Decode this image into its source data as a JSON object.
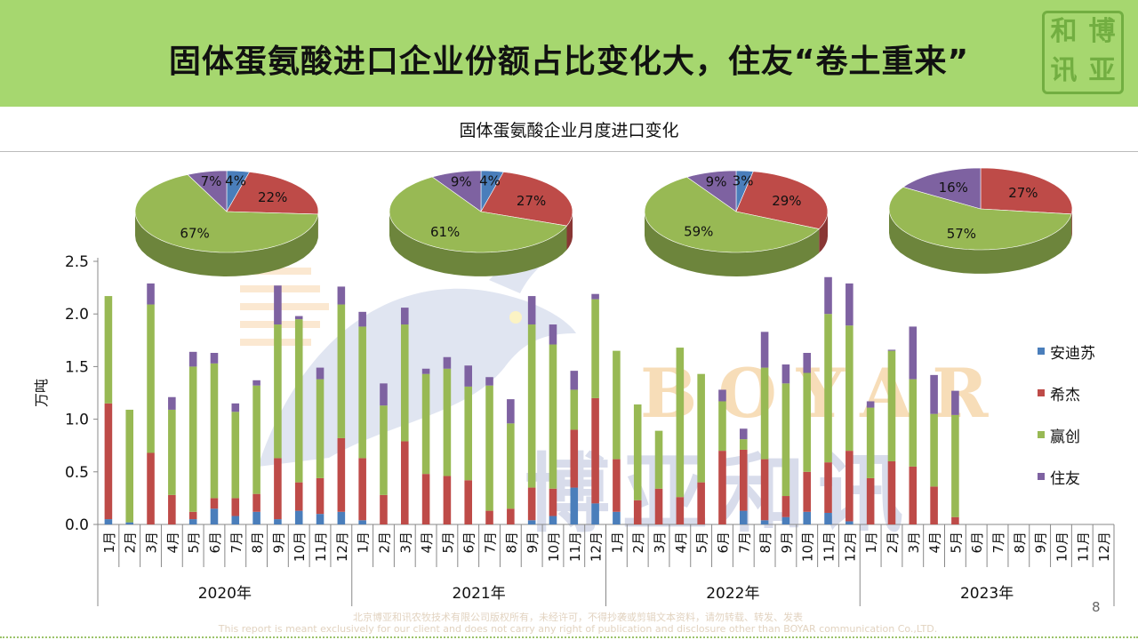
{
  "page": {
    "title": "固体蛋氨酸进口企业份额占比变化大，住友“卷土重来”",
    "seal_chars": [
      "和",
      "博",
      "讯",
      "亚"
    ],
    "page_number": "8",
    "footer_cn": "北京博亚和讯农牧技术有限公司版权所有，未经许可，不得抄袭或剪辑文本资料，请勿转载、转发、发表",
    "footer_en": "This report is meant exclusively for our client and does not carry any right of publication and disclosure other than BOYAR communication Co.,LTD.",
    "watermark_en": "BOYAR",
    "watermark_cn": "博亚和讯"
  },
  "colors": {
    "安迪苏": "#4a7ebb",
    "希杰": "#be4b48",
    "赢创": "#98b954",
    "住友": "#7e62a1"
  },
  "chart_data": {
    "type": "bar",
    "stacked": true,
    "title": "固体蛋氨酸企业月度进口变化",
    "ylabel": "万吨",
    "ylim": [
      0,
      2.5
    ],
    "yticks": [
      "0.0",
      "0.5",
      "1.0",
      "1.5",
      "2.0",
      "2.5"
    ],
    "legend_position": "right",
    "years": [
      "2020年",
      "2021年",
      "2022年",
      "2023年"
    ],
    "months": [
      "1月",
      "2月",
      "3月",
      "4月",
      "5月",
      "6月",
      "7月",
      "8月",
      "9月",
      "10月",
      "11月",
      "12月"
    ],
    "series": [
      {
        "name": "安迪苏",
        "values": [
          0.05,
          0.02,
          0,
          0,
          0.05,
          0.15,
          0.08,
          0.12,
          0.05,
          0.13,
          0.1,
          0.12,
          0.04,
          0,
          0,
          0,
          0,
          0,
          0,
          0,
          0.04,
          0.08,
          0.35,
          0.2,
          0.12,
          0,
          0,
          0,
          0,
          0,
          0.13,
          0.04,
          0.07,
          0.12,
          0.11,
          0.03,
          0,
          0,
          0,
          0,
          0,
          null,
          null,
          null,
          null,
          null,
          null,
          null
        ]
      },
      {
        "name": "希杰",
        "values": [
          1.1,
          0,
          0.68,
          0.28,
          0.07,
          0.1,
          0.17,
          0.17,
          0.58,
          0.27,
          0.34,
          0.7,
          0.59,
          0.28,
          0.79,
          0.48,
          0.46,
          0.42,
          0.13,
          0.15,
          0.31,
          0.26,
          0.55,
          1.0,
          0.5,
          0.23,
          0.34,
          0.26,
          0.4,
          0.7,
          0.58,
          0.58,
          0.2,
          0.38,
          0.48,
          0.67,
          0.44,
          0.6,
          0.55,
          0.36,
          0.07,
          null,
          null,
          null,
          null,
          null,
          null,
          null
        ]
      },
      {
        "name": "赢创",
        "values": [
          1.02,
          1.07,
          1.41,
          0.81,
          1.38,
          1.28,
          0.82,
          1.03,
          1.27,
          1.55,
          0.94,
          1.27,
          1.25,
          0.85,
          1.11,
          0.95,
          1.02,
          0.89,
          1.19,
          0.81,
          1.55,
          1.37,
          0.38,
          0.94,
          1.03,
          0.91,
          0.55,
          1.42,
          1.03,
          0.47,
          0.1,
          0.87,
          1.07,
          0.94,
          1.41,
          1.19,
          0.67,
          1.05,
          0.83,
          0.69,
          0.97,
          null,
          null,
          null,
          null,
          null,
          null,
          null
        ]
      },
      {
        "name": "住友",
        "values": [
          0,
          0,
          0.2,
          0.12,
          0.14,
          0.1,
          0.08,
          0.05,
          0.37,
          0.03,
          0.11,
          0.17,
          0.14,
          0.21,
          0.16,
          0.05,
          0.11,
          0.2,
          0.08,
          0.23,
          0.27,
          0.19,
          0.18,
          0.05,
          0,
          0,
          0,
          0,
          0,
          0.11,
          0.1,
          0.34,
          0.18,
          0.19,
          0.35,
          0.4,
          0.06,
          0.01,
          0.5,
          0.37,
          0.23,
          null,
          null,
          null,
          null,
          null,
          null,
          null
        ]
      }
    ],
    "pies": [
      {
        "year": "2020年",
        "slices": [
          {
            "name": "安迪苏",
            "value": 4,
            "label": "4%"
          },
          {
            "name": "希杰",
            "value": 22,
            "label": "22%"
          },
          {
            "name": "赢创",
            "value": 67,
            "label": "67%"
          },
          {
            "name": "住友",
            "value": 7,
            "label": "7%"
          }
        ]
      },
      {
        "year": "2021年",
        "slices": [
          {
            "name": "安迪苏",
            "value": 4,
            "label": "4%"
          },
          {
            "name": "希杰",
            "value": 27,
            "label": "27%"
          },
          {
            "name": "赢创",
            "value": 61,
            "label": "61%"
          },
          {
            "name": "住友",
            "value": 9,
            "label": "9%"
          }
        ]
      },
      {
        "year": "2022年",
        "slices": [
          {
            "name": "安迪苏",
            "value": 3,
            "label": "3%"
          },
          {
            "name": "希杰",
            "value": 29,
            "label": "29%"
          },
          {
            "name": "赢创",
            "value": 59,
            "label": "59%"
          },
          {
            "name": "住友",
            "value": 9,
            "label": "9%"
          }
        ]
      },
      {
        "year": "2023年",
        "slices": [
          {
            "name": "安迪苏",
            "value": 0,
            "label": ""
          },
          {
            "name": "希杰",
            "value": 27,
            "label": "27%"
          },
          {
            "name": "赢创",
            "value": 57,
            "label": "57%"
          },
          {
            "name": "住友",
            "value": 16,
            "label": "16%"
          }
        ]
      }
    ]
  }
}
